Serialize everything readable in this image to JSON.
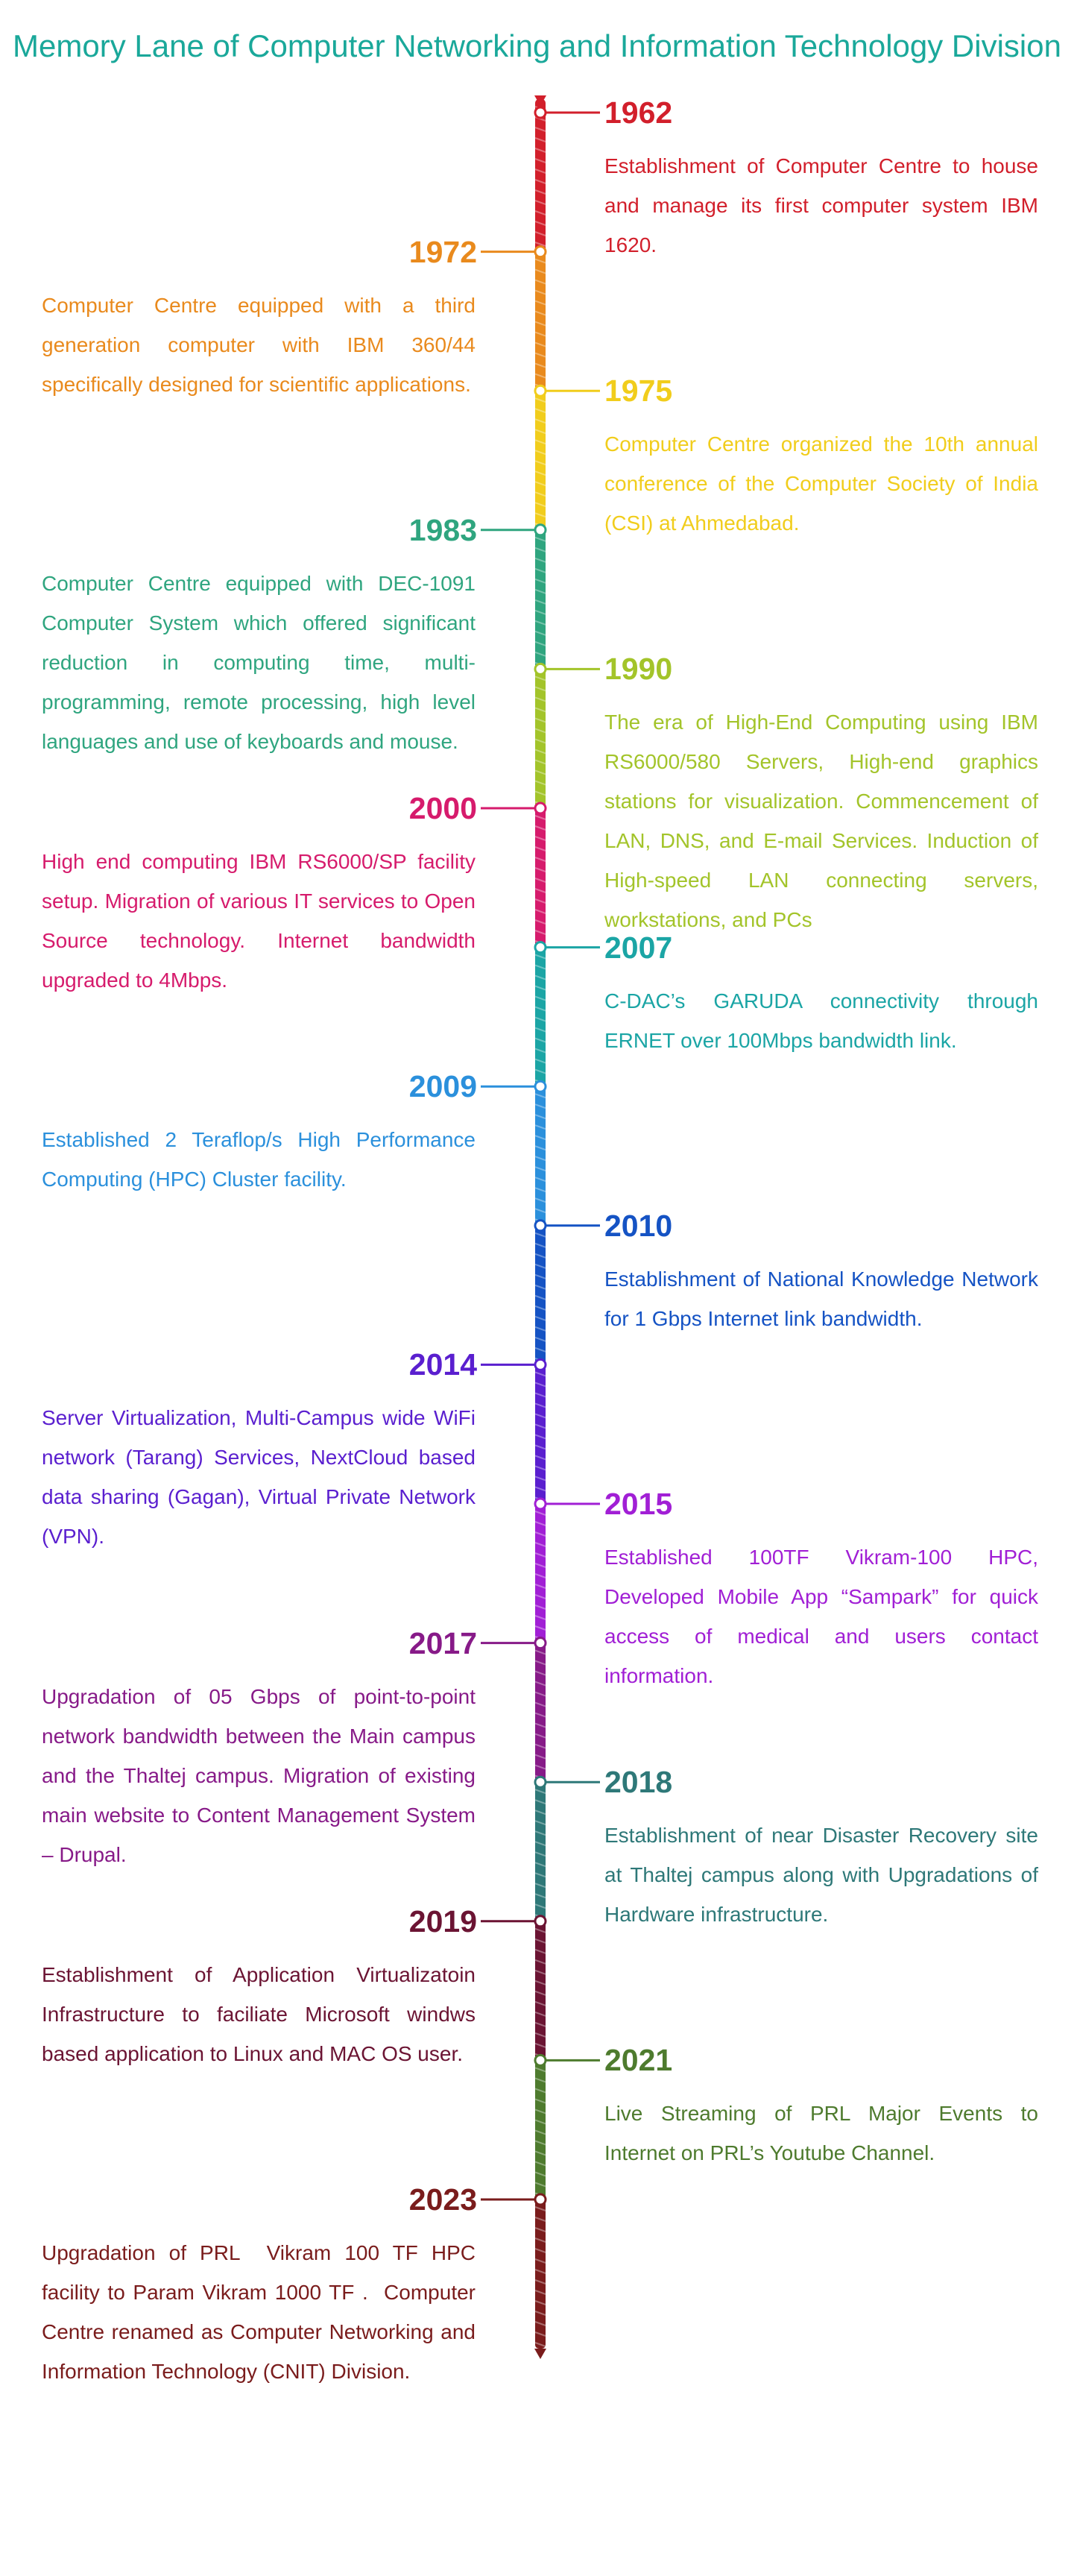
{
  "title": "Memory Lane of Computer Networking and Information Technology Division",
  "events": [
    {
      "year": "1962",
      "color": "#d21f2b",
      "text": "Establishment of Computer Centre to house and manage its first computer system IBM 1620."
    },
    {
      "year": "1972",
      "color": "#e98a1d",
      "text": "Computer Centre equipped with a third generation computer with IBM 360/44 specifically designed for scientific applications."
    },
    {
      "year": "1975",
      "color": "#f1cd1c",
      "text": "Computer Centre organized the 10th annual conference of the Computer Society of India (CSI) at Ahmedabad."
    },
    {
      "year": "1983",
      "color": "#2fa57f",
      "text": "Computer Centre equipped with DEC-1091 Computer System which offered significant reduction in computing time, multi-programming, remote processing, high level languages and use of keyboards and mouse."
    },
    {
      "year": "1990",
      "color": "#a3c42a",
      "text": "The era of High-End Computing using IBM RS6000/580 Servers, High-end graphics stations for visualization. Commencement of LAN, DNS, and E-mail Services. Induction of High-speed LAN connecting servers, workstations, and PCs"
    },
    {
      "year": "2000",
      "color": "#d61b6c",
      "text": "High end computing IBM RS6000/SP facility setup. Migration of various IT services to Open Source technology. Internet bandwidth upgraded to 4Mbps."
    },
    {
      "year": "2007",
      "color": "#1ba5a5",
      "text": "C-DAC’s GARUDA connectivity through ERNET over 100Mbps bandwidth link."
    },
    {
      "year": "2009",
      "color": "#2b90dc",
      "text": "Established 2 Teraflop/s High Performance Computing (HPC) Cluster facility."
    },
    {
      "year": "2010",
      "color": "#1553c4",
      "text": "Establishment of National Knowledge Network for 1 Gbps Internet link bandwidth."
    },
    {
      "year": "2014",
      "color": "#5a1fcf",
      "text": "Server Virtualization, Multi-Campus wide WiFi network (Tarang) Services, NextCloud based data sharing (Gagan), Virtual Private Network (VPN)."
    },
    {
      "year": "2015",
      "color": "#a11fd5",
      "text": "Established 100TF Vikram-100 HPC, Developed Mobile App “Sampark” for quick access of medical and users contact information."
    },
    {
      "year": "2017",
      "color": "#871a88",
      "text": "Upgradation of 05 Gbps of point-to-point network bandwidth between the Main campus and the Thaltej campus. Migration of existing main website to Content Management System – Drupal."
    },
    {
      "year": "2018",
      "color": "#2e7878",
      "text": "Establishment of near Disaster Recovery site at Thaltej campus along with Upgradations of Hardware infrastructure."
    },
    {
      "year": "2019",
      "color": "#6b1433",
      "text": "Establishment of Application Virtualizatoin Infrastructure to faciliate Microsoft windws based application to Linux and MAC OS user."
    },
    {
      "year": "2021",
      "color": "#4e7b2e",
      "text": "Live Streaming of PRL Major Events to Internet on PRL’s Youtube Channel."
    },
    {
      "year": "2023",
      "color": "#7a1c1c",
      "text": "Upgradation of PRL  Vikram 100 TF HPC facility to Param Vikram 1000 TF .  Computer Centre renamed as Computer Networking and Information Technology (CNIT) Division."
    }
  ]
}
